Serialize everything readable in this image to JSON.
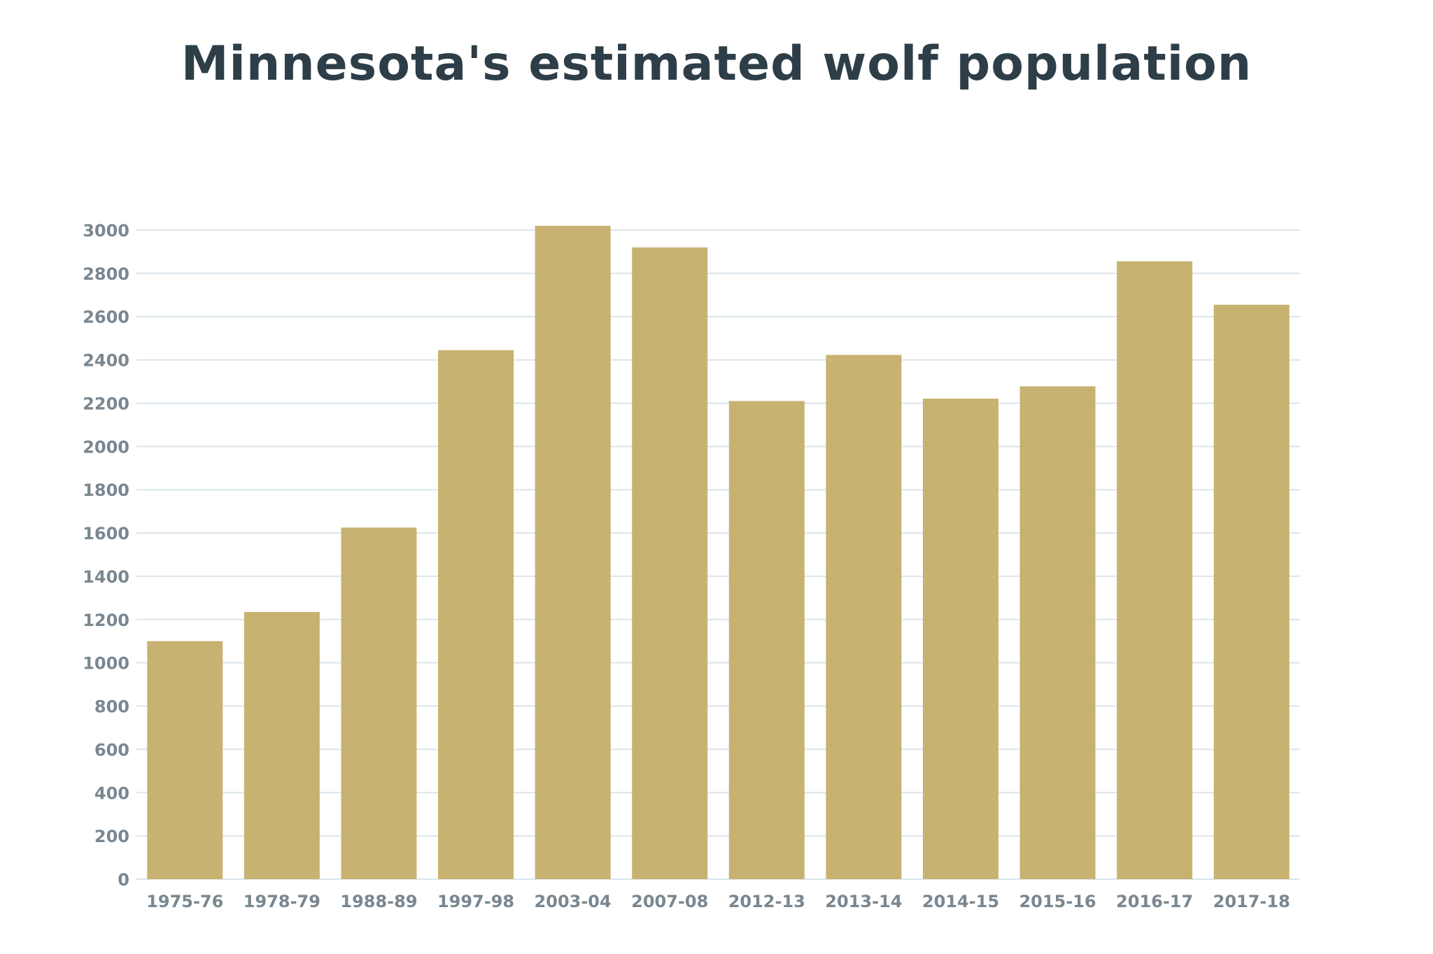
{
  "chart_data": {
    "type": "bar",
    "title": "Minnesota's estimated wolf population",
    "xlabel": "",
    "ylabel": "",
    "categories": [
      "1975-76",
      "1978-79",
      "1988-89",
      "1997-98",
      "2003-04",
      "2007-08",
      "2012-13",
      "2013-14",
      "2014-15",
      "2015-16",
      "2016-17",
      "2017-18"
    ],
    "values": [
      1100,
      1235,
      1625,
      2445,
      3020,
      2920,
      2210,
      2423,
      2221,
      2278,
      2856,
      2655
    ],
    "ylim": [
      0,
      3000
    ],
    "yticks": [
      0,
      200,
      400,
      600,
      800,
      1000,
      1200,
      1400,
      1600,
      1800,
      2000,
      2200,
      2400,
      2600,
      2800,
      3000
    ],
    "grid": true,
    "legend": "none",
    "colors": {
      "bar": "#c7b271",
      "grid": "#dbe5ec",
      "tick_text": "#7a8790",
      "title_text": "#2e3e48"
    }
  }
}
